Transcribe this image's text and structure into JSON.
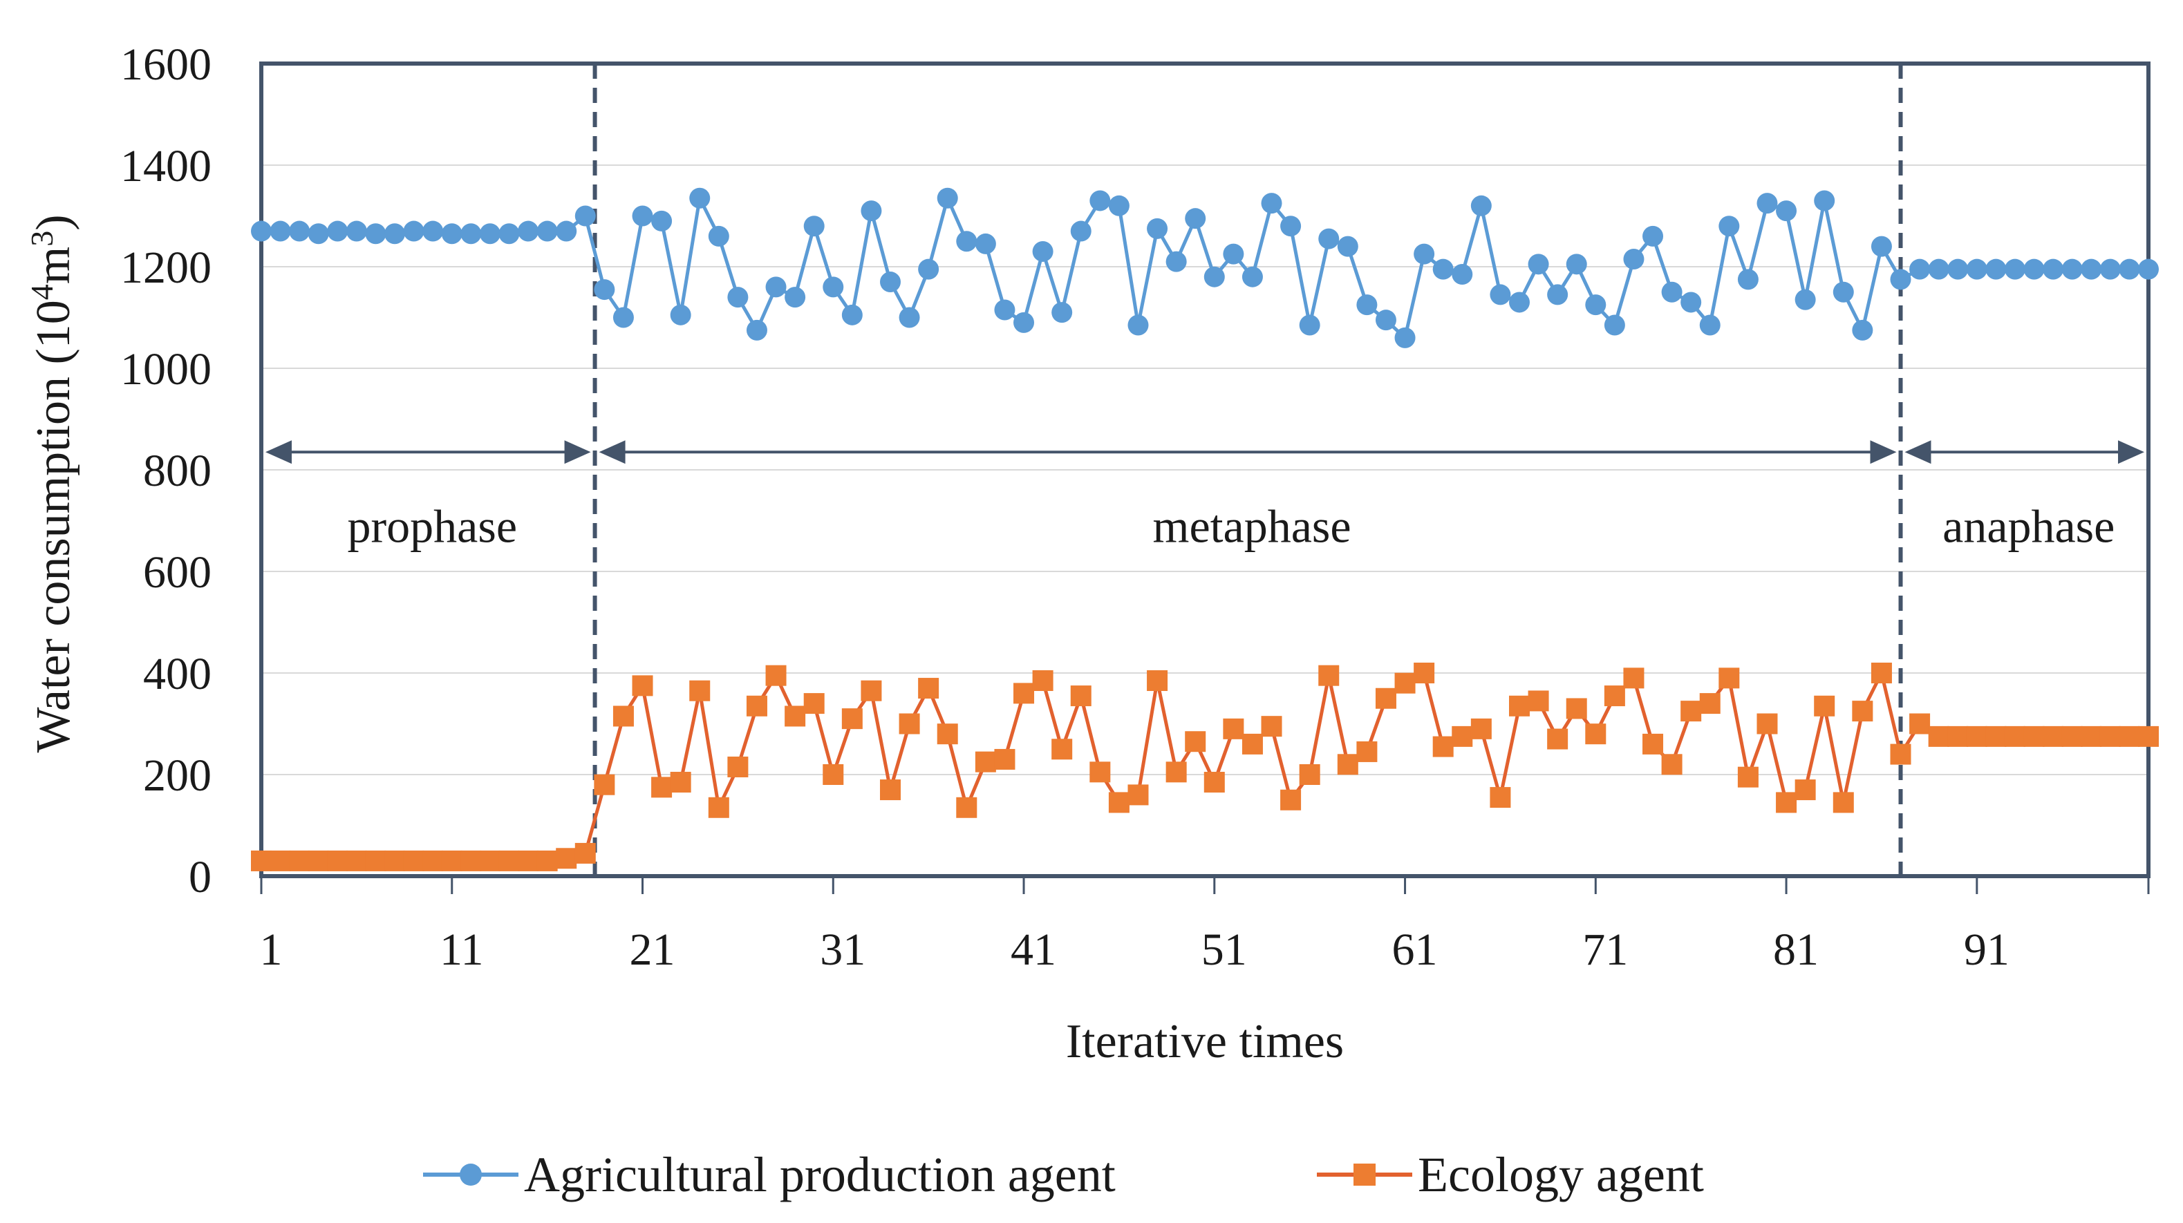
{
  "chart_data": {
    "type": "line",
    "title": "",
    "xlabel": "Iterative times",
    "ylabel": "Water consumption (10",
    "ylabel_sup1": "4",
    "ylabel_mid": "m",
    "ylabel_sup2": "3",
    "ylabel_end": ")",
    "ylim": [
      0,
      1600
    ],
    "yticks": [
      0,
      200,
      400,
      600,
      800,
      1000,
      1200,
      1400,
      1600
    ],
    "ytick_labels": [
      "0",
      "200",
      "400",
      "600",
      "800",
      "1000",
      "1200",
      "1400",
      "1600"
    ],
    "xlim": [
      1,
      100
    ],
    "xticks": [
      1,
      11,
      21,
      31,
      41,
      51,
      61,
      71,
      81,
      91
    ],
    "xtick_labels": [
      "1",
      "11",
      "21",
      "31",
      "41",
      "51",
      "61",
      "71",
      "81",
      "91"
    ],
    "grid": true,
    "legend_position": "bottom",
    "phases": [
      {
        "label": "prophase",
        "start": 1,
        "end": 18.5
      },
      {
        "label": "metaphase",
        "start": 18.5,
        "end": 87
      },
      {
        "label": "anaphase",
        "start": 87,
        "end": 100
      }
    ],
    "phase_boundaries": [
      18.5,
      87
    ],
    "phase_arrow_y": 835,
    "series": [
      {
        "name": "Agricultural production agent",
        "color": "#5b9bd5",
        "marker": "circle",
        "x": [
          1,
          2,
          3,
          4,
          5,
          6,
          7,
          8,
          9,
          10,
          11,
          12,
          13,
          14,
          15,
          16,
          17,
          18,
          19,
          20,
          21,
          22,
          23,
          24,
          25,
          26,
          27,
          28,
          29,
          30,
          31,
          32,
          33,
          34,
          35,
          36,
          37,
          38,
          39,
          40,
          41,
          42,
          43,
          44,
          45,
          46,
          47,
          48,
          49,
          50,
          51,
          52,
          53,
          54,
          55,
          56,
          57,
          58,
          59,
          60,
          61,
          62,
          63,
          64,
          65,
          66,
          67,
          68,
          69,
          70,
          71,
          72,
          73,
          74,
          75,
          76,
          77,
          78,
          79,
          80,
          81,
          82,
          83,
          84,
          85,
          86,
          87,
          88,
          89,
          90,
          91,
          92,
          93,
          94,
          95,
          96,
          97,
          98,
          99,
          100
        ],
        "values": [
          1270,
          1270,
          1270,
          1265,
          1270,
          1270,
          1265,
          1265,
          1270,
          1270,
          1265,
          1265,
          1265,
          1265,
          1270,
          1270,
          1270,
          1300,
          1155,
          1100,
          1300,
          1290,
          1105,
          1335,
          1260,
          1140,
          1075,
          1160,
          1140,
          1280,
          1160,
          1105,
          1310,
          1170,
          1100,
          1195,
          1335,
          1250,
          1245,
          1115,
          1090,
          1230,
          1110,
          1270,
          1330,
          1320,
          1085,
          1275,
          1210,
          1295,
          1180,
          1225,
          1180,
          1325,
          1280,
          1085,
          1255,
          1240,
          1125,
          1095,
          1060,
          1225,
          1195,
          1185,
          1320,
          1145,
          1130,
          1205,
          1145,
          1205,
          1125,
          1085,
          1215,
          1260,
          1150,
          1130,
          1085,
          1280,
          1175,
          1325,
          1310,
          1135,
          1330,
          1150,
          1075,
          1240,
          1175,
          1195,
          1195,
          1195,
          1195,
          1195,
          1195,
          1195,
          1195,
          1195,
          1195,
          1195,
          1195,
          1195
        ]
      },
      {
        "name": "Ecology agent",
        "color": "#e2612e",
        "marker_color": "#ed7d31",
        "marker": "square",
        "x": [
          1,
          2,
          3,
          4,
          5,
          6,
          7,
          8,
          9,
          10,
          11,
          12,
          13,
          14,
          15,
          16,
          17,
          18,
          19,
          20,
          21,
          22,
          23,
          24,
          25,
          26,
          27,
          28,
          29,
          30,
          31,
          32,
          33,
          34,
          35,
          36,
          37,
          38,
          39,
          40,
          41,
          42,
          43,
          44,
          45,
          46,
          47,
          48,
          49,
          50,
          51,
          52,
          53,
          54,
          55,
          56,
          57,
          58,
          59,
          60,
          61,
          62,
          63,
          64,
          65,
          66,
          67,
          68,
          69,
          70,
          71,
          72,
          73,
          74,
          75,
          76,
          77,
          78,
          79,
          80,
          81,
          82,
          83,
          84,
          85,
          86,
          87,
          88,
          89,
          90,
          91,
          92,
          93,
          94,
          95,
          96,
          97,
          98,
          99,
          100
        ],
        "values": [
          30,
          30,
          30,
          30,
          30,
          30,
          30,
          30,
          30,
          30,
          30,
          30,
          30,
          30,
          30,
          30,
          35,
          45,
          180,
          315,
          375,
          175,
          185,
          365,
          135,
          215,
          335,
          395,
          315,
          340,
          200,
          310,
          365,
          170,
          300,
          370,
          280,
          135,
          225,
          230,
          360,
          385,
          250,
          355,
          205,
          145,
          160,
          385,
          205,
          265,
          185,
          290,
          260,
          295,
          150,
          200,
          395,
          220,
          245,
          350,
          380,
          400,
          255,
          275,
          290,
          155,
          335,
          345,
          270,
          330,
          280,
          355,
          390,
          260,
          220,
          325,
          340,
          390,
          195,
          300,
          145,
          170,
          335,
          145,
          325,
          400,
          240,
          300,
          275,
          275,
          275,
          275,
          275,
          275,
          275,
          275,
          275,
          275,
          275,
          275
        ]
      }
    ]
  }
}
